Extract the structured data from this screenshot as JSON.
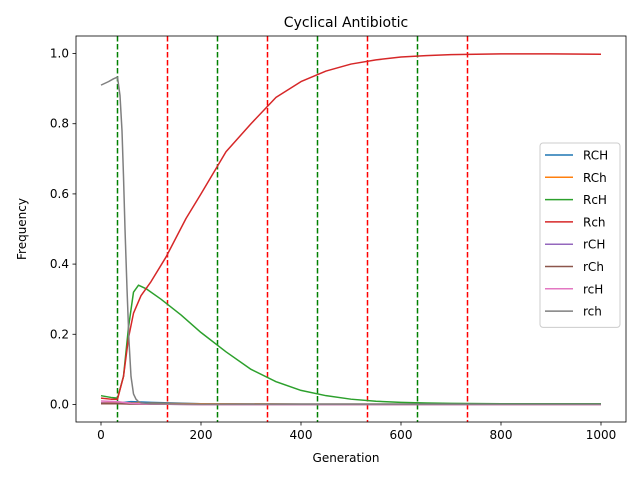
{
  "chart_data": {
    "type": "line",
    "title": "Cyclical Antibiotic",
    "xlabel": "Generation",
    "ylabel": "Frequency",
    "xlim": [
      -50,
      1050
    ],
    "ylim": [
      -0.05,
      1.05
    ],
    "x_ticks": [
      0,
      200,
      400,
      600,
      800,
      1000
    ],
    "x_tick_labels": [
      "0",
      "200",
      "400",
      "600",
      "800",
      "1000"
    ],
    "y_ticks": [
      0.0,
      0.2,
      0.4,
      0.6,
      0.8,
      1.0
    ],
    "y_tick_labels": [
      "0.0",
      "0.2",
      "0.4",
      "0.6",
      "0.8",
      "1.0"
    ],
    "grid": false,
    "legend_position": "center-right",
    "vlines": [
      {
        "x": 33,
        "color": "#008000"
      },
      {
        "x": 133,
        "color": "#ff0000"
      },
      {
        "x": 233,
        "color": "#008000"
      },
      {
        "x": 333,
        "color": "#ff0000"
      },
      {
        "x": 433,
        "color": "#008000"
      },
      {
        "x": 533,
        "color": "#ff0000"
      },
      {
        "x": 633,
        "color": "#008000"
      },
      {
        "x": 733,
        "color": "#ff0000"
      }
    ],
    "series": [
      {
        "name": "RCH",
        "color": "#1f77b4",
        "x": [
          0,
          33,
          60,
          100,
          200,
          400,
          700,
          1000
        ],
        "y": [
          0.003,
          0.004,
          0.008,
          0.006,
          0.002,
          0.001,
          0.001,
          0.001
        ]
      },
      {
        "name": "RCh",
        "color": "#ff7f0e",
        "x": [
          0,
          33,
          60,
          100,
          200,
          400,
          700,
          1000
        ],
        "y": [
          0.005,
          0.006,
          0.004,
          0.003,
          0.002,
          0.001,
          0.001,
          0.001
        ]
      },
      {
        "name": "RcH",
        "color": "#2ca02c",
        "x": [
          0,
          20,
          33,
          45,
          55,
          65,
          75,
          90,
          120,
          160,
          200,
          250,
          300,
          350,
          400,
          450,
          500,
          550,
          600,
          650,
          700,
          800,
          900,
          1000
        ],
        "y": [
          0.025,
          0.02,
          0.018,
          0.08,
          0.22,
          0.32,
          0.34,
          0.33,
          0.3,
          0.255,
          0.205,
          0.15,
          0.1,
          0.065,
          0.04,
          0.025,
          0.015,
          0.009,
          0.006,
          0.004,
          0.003,
          0.002,
          0.002,
          0.002
        ]
      },
      {
        "name": "Rch",
        "color": "#d62728",
        "x": [
          0,
          20,
          33,
          45,
          55,
          65,
          80,
          100,
          130,
          170,
          200,
          250,
          300,
          350,
          400,
          450,
          500,
          550,
          600,
          650,
          700,
          750,
          800,
          900,
          1000
        ],
        "y": [
          0.018,
          0.015,
          0.015,
          0.08,
          0.19,
          0.26,
          0.31,
          0.35,
          0.42,
          0.53,
          0.6,
          0.72,
          0.8,
          0.875,
          0.92,
          0.95,
          0.97,
          0.982,
          0.99,
          0.994,
          0.997,
          0.998,
          0.999,
          0.999,
          0.998
        ]
      },
      {
        "name": "rCH",
        "color": "#9467bd",
        "x": [
          0,
          33,
          60,
          100,
          200,
          400,
          700,
          1000
        ],
        "y": [
          0.004,
          0.003,
          0.002,
          0.001,
          0.0,
          0.0,
          0.0,
          0.0
        ]
      },
      {
        "name": "rCh",
        "color": "#8c564b",
        "x": [
          0,
          33,
          60,
          100,
          200,
          400,
          700,
          1000
        ],
        "y": [
          0.002,
          0.002,
          0.001,
          0.001,
          0.0,
          0.0,
          0.0,
          0.0
        ]
      },
      {
        "name": "rcH",
        "color": "#e377c2",
        "x": [
          0,
          33,
          60,
          100,
          200,
          400,
          700,
          1000
        ],
        "y": [
          0.01,
          0.008,
          0.003,
          0.001,
          0.0,
          0.0,
          0.0,
          0.0
        ]
      },
      {
        "name": "rch",
        "color": "#7f7f7f",
        "x": [
          0,
          15,
          25,
          33,
          38,
          42,
          45,
          48,
          52,
          56,
          60,
          65,
          70,
          75,
          80,
          100,
          200,
          400,
          700,
          1000
        ],
        "y": [
          0.91,
          0.92,
          0.928,
          0.933,
          0.88,
          0.78,
          0.65,
          0.5,
          0.33,
          0.18,
          0.08,
          0.03,
          0.015,
          0.008,
          0.005,
          0.002,
          0.001,
          0.001,
          0.001,
          0.001
        ]
      }
    ]
  }
}
